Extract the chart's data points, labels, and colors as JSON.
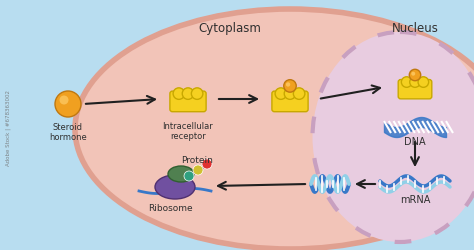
{
  "bg_outer": "#b8ddf0",
  "bg_cell": "#f2c4b8",
  "bg_nucleus": "#e8cce0",
  "cell_edge": "#e0a090",
  "nuclear_dash_color": "#c8a0c0",
  "hormone_color": "#f0a020",
  "hormone_highlight": "#ffd070",
  "receptor_color": "#f5d020",
  "receptor_edge": "#c8a800",
  "dna_top_color": "#3878c8",
  "dna_bot_color": "#70b8e0",
  "dna_stripe": "#ffffff",
  "mrna_top": "#3878c8",
  "mrna_bot": "#90d0e8",
  "rib_large": "#7050a0",
  "rib_large_edge": "#503070",
  "rib_small": "#508050",
  "rib_small_edge": "#306030",
  "mrna_thread": "#3878c8",
  "prot_red": "#e03030",
  "prot_teal": "#30a080",
  "prot_yellow": "#d0c030",
  "prot_line": "#606060",
  "text_dark": "#303030",
  "arrow_color": "#202020",
  "label_cytoplasm": "Cytoplasm",
  "label_nucleus": "Nucleus",
  "label_steroid": "Steroid\nhormone",
  "label_receptor": "Intracellular\nreceptor",
  "label_dna": "DNA",
  "label_mrna": "mRNA",
  "label_ribosome": "Ribosome",
  "label_protein": "Protein",
  "watermark": "Adobe Stock | #678363002"
}
